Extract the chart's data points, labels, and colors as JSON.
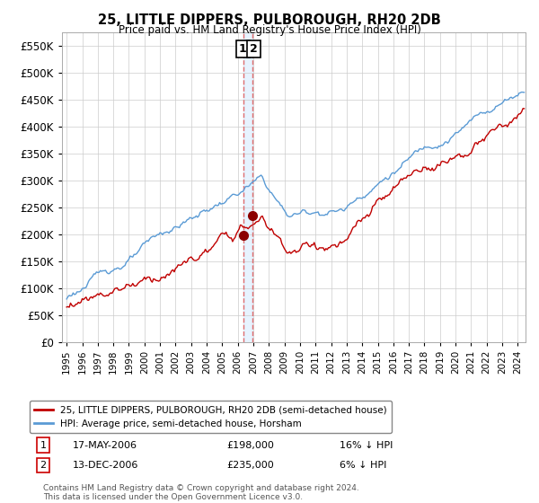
{
  "title": "25, LITTLE DIPPERS, PULBOROUGH, RH20 2DB",
  "subtitle": "Price paid vs. HM Land Registry's House Price Index (HPI)",
  "legend_line1": "25, LITTLE DIPPERS, PULBOROUGH, RH20 2DB (semi-detached house)",
  "legend_line2": "HPI: Average price, semi-detached house, Horsham",
  "footnote": "Contains HM Land Registry data © Crown copyright and database right 2024.\nThis data is licensed under the Open Government Licence v3.0.",
  "transaction1_date": "17-MAY-2006",
  "transaction1_price": "£198,000",
  "transaction1_hpi": "16% ↓ HPI",
  "transaction2_date": "13-DEC-2006",
  "transaction2_price": "£235,000",
  "transaction2_hpi": "6% ↓ HPI",
  "hpi_color": "#5b9bd5",
  "price_color": "#c00000",
  "marker_color": "#8b0000",
  "vline_color": "#e06060",
  "vshade_color": "#ddeeff",
  "ylim": [
    0,
    575000
  ],
  "yticks": [
    0,
    50000,
    100000,
    150000,
    200000,
    250000,
    300000,
    350000,
    400000,
    450000,
    500000,
    550000
  ],
  "xlim_start": 1994.7,
  "xlim_end": 2024.5
}
